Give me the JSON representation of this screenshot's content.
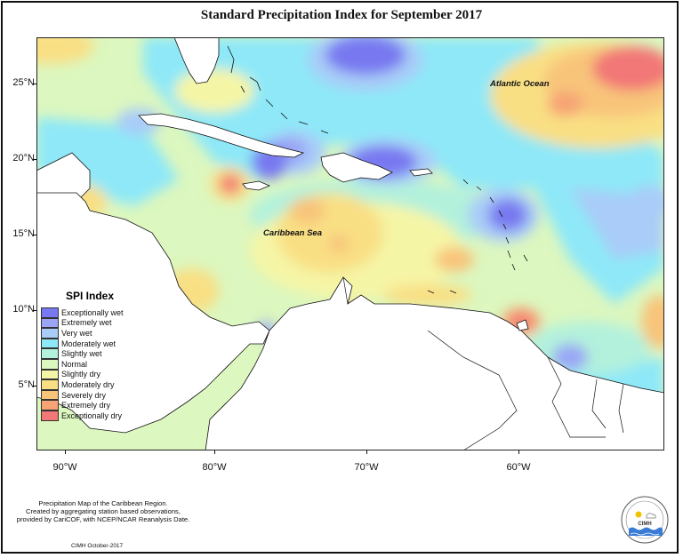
{
  "title": "Standard Precipitation Index for September 2017",
  "latitude_labels": [
    "25°N",
    "20°N",
    "15°N",
    "10°N",
    "5°N"
  ],
  "longitude_labels": [
    "90°W",
    "80°W",
    "70°W",
    "60°W"
  ],
  "place_labels": {
    "ocean": "Atlantic Ocean",
    "sea": "Caribbean Sea"
  },
  "legend": {
    "title": "SPI Index",
    "items": [
      {
        "label": "Exceptionally wet",
        "color": "#7878f0"
      },
      {
        "label": "Extremely wet",
        "color": "#9aa6f5"
      },
      {
        "label": "Very wet",
        "color": "#a9ccf8"
      },
      {
        "label": "Moderately wet",
        "color": "#8ee8f8"
      },
      {
        "label": "Slightly wet",
        "color": "#b3f1dc"
      },
      {
        "label": "Normal",
        "color": "#dcf7bf"
      },
      {
        "label": "Slightly dry",
        "color": "#f5f5a6"
      },
      {
        "label": "Moderately dry",
        "color": "#f9df84"
      },
      {
        "label": "Severely dry",
        "color": "#f8c47a"
      },
      {
        "label": "Extremely dry",
        "color": "#f7a373"
      },
      {
        "label": "Exceptionally dry",
        "color": "#f27777"
      }
    ]
  },
  "footer": {
    "line1": "Precipitation Map of the Caribbean Region.",
    "line2": "Created by aggregating station based observations,",
    "line3": "provided by CariCOF, with NCEP/NCAR Reanalysis Date.",
    "credit": "CIMH October-2017"
  },
  "logo": {
    "text": "CIMH",
    "icon": "cimh-logo-icon"
  }
}
